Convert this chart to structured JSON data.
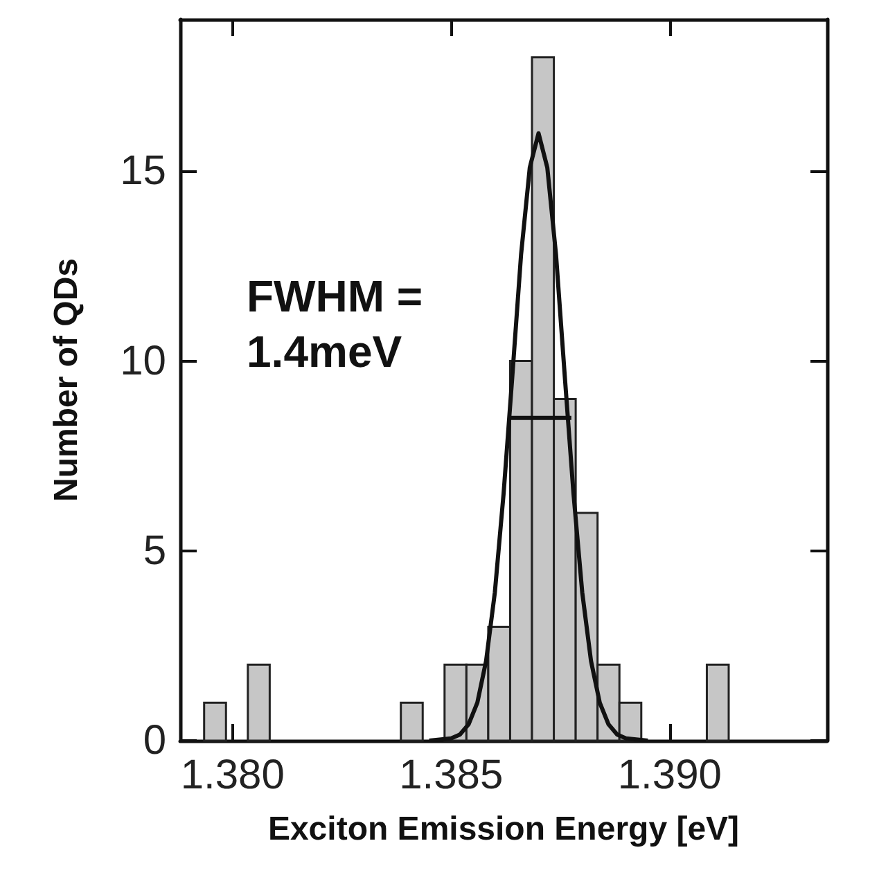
{
  "chart_data": {
    "type": "histogram",
    "xlabel": "Exciton Emission Energy [eV]",
    "ylabel": "Number of QDs",
    "bins": [
      1.37935,
      1.37985,
      1.38035,
      1.38085,
      1.38135,
      1.38185,
      1.38235,
      1.38285,
      1.38335,
      1.38385,
      1.38435,
      1.38485,
      1.38535,
      1.38585,
      1.38635,
      1.38685,
      1.38735,
      1.38785,
      1.38835,
      1.38885,
      1.38935,
      1.38985,
      1.39035,
      1.39085,
      1.39135
    ],
    "values": [
      1,
      0,
      2,
      0,
      0,
      0,
      0,
      0,
      0,
      1,
      0,
      2,
      2,
      3,
      10,
      18,
      9,
      6,
      2,
      1,
      0,
      0,
      0,
      2
    ],
    "color": "#c6c6c6",
    "series": [
      {
        "type": "line",
        "color": "#111111",
        "x": [
          1.3845,
          1.385,
          1.3852,
          1.3854,
          1.3856,
          1.3858,
          1.386,
          1.3862,
          1.3864,
          1.3866,
          1.3868,
          1.387,
          1.3872,
          1.3874,
          1.3876,
          1.3878,
          1.388,
          1.3882,
          1.3884,
          1.3886,
          1.3888,
          1.389,
          1.3895
        ],
        "values": [
          0,
          0.06,
          0.16,
          0.43,
          1.0,
          2.1,
          3.9,
          6.5,
          9.6,
          12.8,
          15.1,
          16,
          15.1,
          12.8,
          9.6,
          6.5,
          3.9,
          2.1,
          1.0,
          0.43,
          0.16,
          0.06,
          0
        ]
      },
      {
        "type": "line",
        "color": "#111111",
        "x": [
          1.38635,
          1.38775
        ],
        "values": [
          8.5,
          8.5
        ]
      }
    ],
    "xlim": [
      1.3788,
      1.3936
    ],
    "ylim": [
      0,
      19
    ],
    "xticks": [
      {
        "value": 1.38,
        "label": "1.380"
      },
      {
        "value": 1.385,
        "label": "1.385"
      },
      {
        "value": 1.39,
        "label": "1.390"
      }
    ],
    "yticks": [
      0,
      5,
      10,
      15
    ],
    "annotations": [
      "FWHM =",
      "1.4meV"
    ]
  }
}
